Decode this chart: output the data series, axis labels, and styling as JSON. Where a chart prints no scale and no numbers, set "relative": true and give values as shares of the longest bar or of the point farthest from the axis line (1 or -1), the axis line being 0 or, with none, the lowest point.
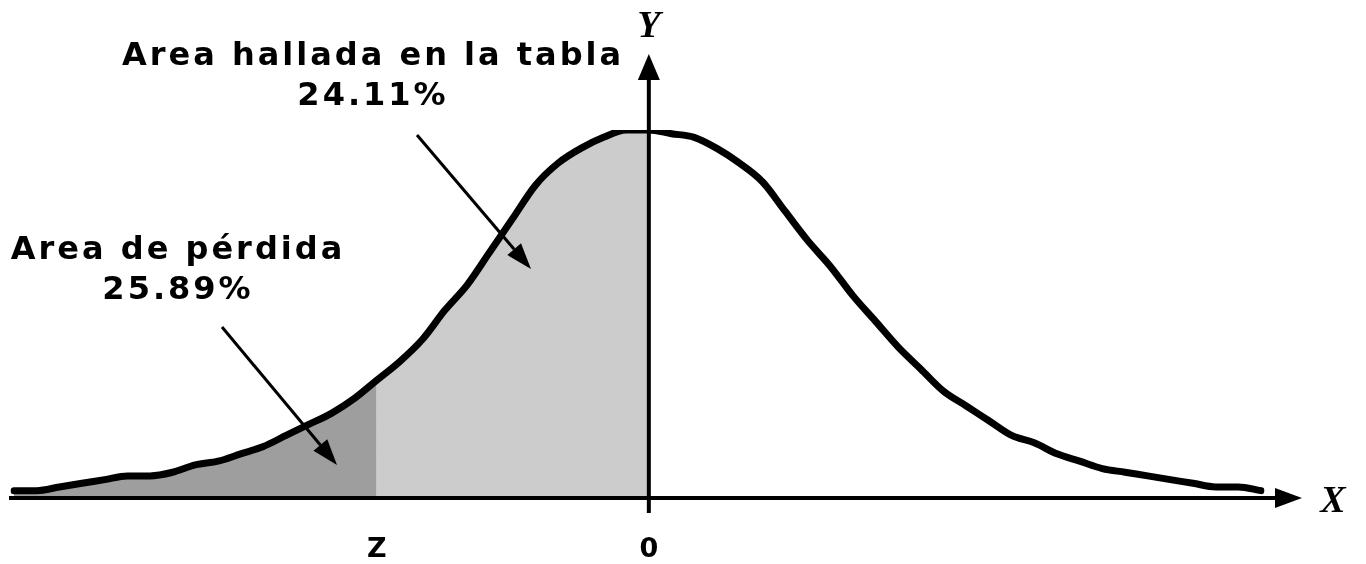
{
  "chart_data": {
    "type": "line",
    "relative": true,
    "xlabel": "X",
    "ylabel": "Y",
    "categories": [
      null,
      null,
      null,
      null,
      null,
      null,
      null,
      null,
      null,
      null,
      null,
      null,
      null,
      null,
      null,
      null,
      "Z",
      null,
      null,
      null,
      null,
      null,
      null,
      null,
      null,
      null,
      null,
      null,
      "0",
      null,
      null,
      null,
      null,
      null,
      null,
      null,
      null,
      null,
      null,
      null,
      null,
      null,
      null,
      null,
      null,
      null,
      null,
      null,
      null,
      null,
      null,
      null,
      null,
      null,
      null,
      null
    ],
    "series": [
      {
        "type": "area",
        "color": "#9e9e9e",
        "values": [
          0.02,
          0.02,
          0.03,
          0.04,
          0.05,
          0.06,
          0.06,
          0.07,
          0.09,
          0.1,
          0.12,
          0.14,
          0.17,
          0.2,
          0.23,
          0.27,
          0.32,
          null,
          null,
          null,
          null,
          null,
          null,
          null,
          null,
          null,
          null,
          null,
          null,
          null,
          null,
          null,
          null,
          null,
          null,
          null,
          null,
          null,
          null,
          null,
          null,
          null,
          null,
          null,
          null,
          null,
          null,
          null,
          null,
          null,
          null,
          null,
          null,
          null,
          null,
          null
        ]
      },
      {
        "type": "area",
        "color": "#cccccc",
        "values": [
          null,
          null,
          null,
          null,
          null,
          null,
          null,
          null,
          null,
          null,
          null,
          null,
          null,
          null,
          null,
          null,
          0.32,
          0.37,
          0.43,
          0.51,
          0.58,
          0.67,
          0.76,
          0.85,
          0.91,
          0.95,
          0.98,
          1,
          1,
          null,
          null,
          null,
          null,
          null,
          null,
          null,
          null,
          null,
          null,
          null,
          null,
          null,
          null,
          null,
          null,
          null,
          null,
          null,
          null,
          null,
          null,
          null,
          null,
          null,
          null,
          null
        ]
      },
      {
        "color": "#000000",
        "values": [
          0.02,
          0.02,
          0.03,
          0.04,
          0.05,
          0.06,
          0.06,
          0.07,
          0.09,
          0.1,
          0.12,
          0.14,
          0.17,
          0.2,
          0.23,
          0.27,
          0.32,
          0.37,
          0.43,
          0.51,
          0.58,
          0.67,
          0.76,
          0.85,
          0.91,
          0.95,
          0.98,
          1,
          1,
          0.99,
          0.98,
          0.95,
          0.91,
          0.86,
          0.78,
          0.7,
          0.63,
          0.55,
          0.48,
          0.41,
          0.35,
          0.29,
          0.25,
          0.21,
          0.17,
          0.15,
          0.12,
          0.1,
          0.08,
          0.07,
          0.06,
          0.05,
          0.04,
          0.03,
          0.03,
          0.02
        ]
      }
    ],
    "ref_lines": [
      {
        "axis": "x",
        "value": "0",
        "color": "#000000"
      }
    ],
    "annotations": [
      "Area hallada en la tabla\n24.11%",
      "Area de pérdida\n25.89%"
    ]
  }
}
